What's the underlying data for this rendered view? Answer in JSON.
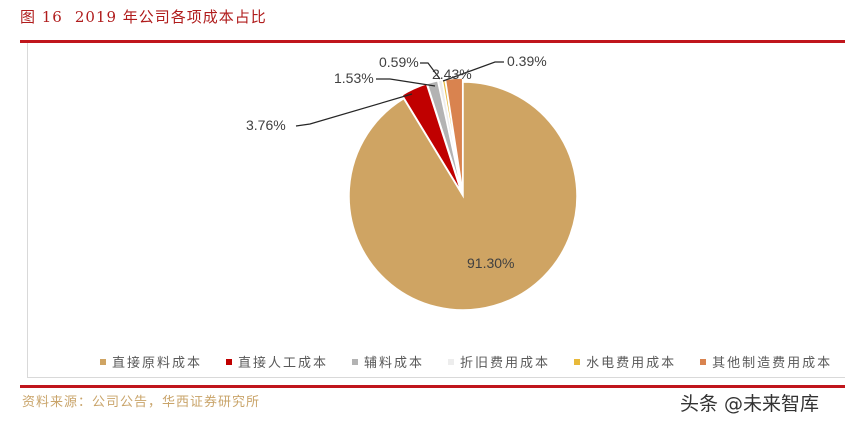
{
  "header": {
    "figure_number": "图 16",
    "title": "2019 年公司各项成本占比"
  },
  "footer": {
    "source": "资料来源：公司公告，华西证券研究所",
    "watermark": "头条 @未来智库"
  },
  "chart_data": {
    "type": "pie",
    "title": "2019 年公司各项成本占比",
    "categories": [
      "直接原料成本",
      "直接人工成本",
      "辅料成本",
      "折旧费用成本",
      "水电费用成本",
      "其他制造费用成本"
    ],
    "values": [
      91.3,
      3.76,
      1.53,
      0.59,
      0.39,
      2.43
    ],
    "labels": [
      "91.30%",
      "3.76%",
      "1.53%",
      "0.59%",
      "0.39%",
      "2.43%"
    ],
    "colors": [
      "#cfa463",
      "#c00000",
      "#b3b3b3",
      "#ededed",
      "#e8b93a",
      "#d9834f"
    ],
    "legend_position": "bottom",
    "start_angle_deg": 0,
    "direction": "clockwise",
    "note": "Slice order clockwise from 12 o'clock: 直接原料成本, 直接人工成本, 辅料成本, 折旧费用成本, 水电费用成本, 其他制造费用成本"
  },
  "legend": [
    {
      "label": "直接原料成本",
      "color": "#cfa463"
    },
    {
      "label": "直接人工成本",
      "color": "#c00000"
    },
    {
      "label": "辅料成本",
      "color": "#b3b3b3"
    },
    {
      "label": "折旧费用成本",
      "color": "#ededed"
    },
    {
      "label": "水电费用成本",
      "color": "#e8b93a"
    },
    {
      "label": "其他制造费用成本",
      "color": "#d9834f"
    }
  ]
}
